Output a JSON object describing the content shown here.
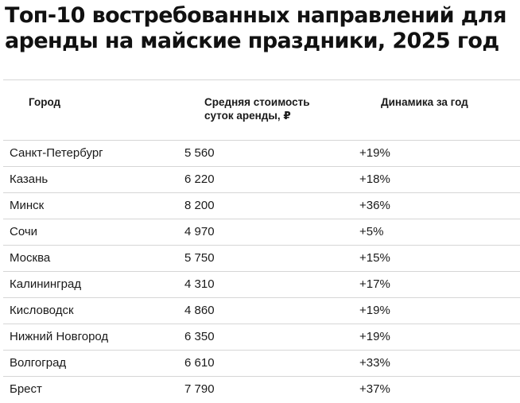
{
  "title": "Топ-10 востребованных направлений для аренды на майские праздники, 2025 год",
  "table": {
    "headers": {
      "city": "Город",
      "price_line1": "Средняя стоимость",
      "price_line2": "суток аренды, ₽",
      "dynamics": "Динамика за год"
    },
    "rows": [
      {
        "city": "Санкт-Петербург",
        "price": "5 560",
        "dynamics": "+19%"
      },
      {
        "city": "Казань",
        "price": "6 220",
        "dynamics": "+18%"
      },
      {
        "city": "Минск",
        "price": "8 200",
        "dynamics": "+36%"
      },
      {
        "city": "Сочи",
        "price": "4 970",
        "dynamics": "+5%"
      },
      {
        "city": "Москва",
        "price": "5 750",
        "dynamics": "+15%"
      },
      {
        "city": "Калининград",
        "price": "4 310",
        "dynamics": "+17%"
      },
      {
        "city": "Кисловодск",
        "price": "4 860",
        "dynamics": "+19%"
      },
      {
        "city": "Нижний Новгород",
        "price": "6 350",
        "dynamics": "+19%"
      },
      {
        "city": "Волгоград",
        "price": "6 610",
        "dynamics": "+33%"
      },
      {
        "city": "Брест",
        "price": "7 790",
        "dynamics": "+37%"
      }
    ]
  }
}
